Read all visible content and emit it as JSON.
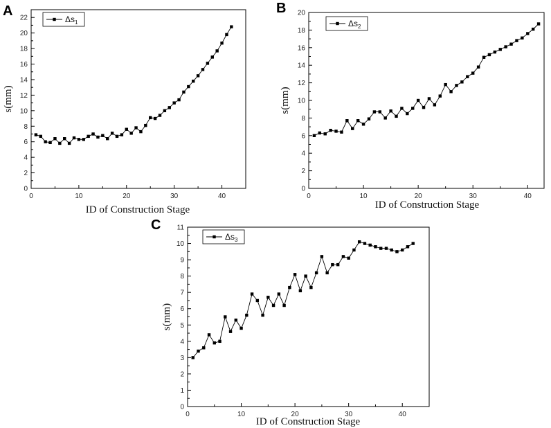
{
  "chart_data": [
    {
      "type": "line",
      "panel": "A",
      "legend": "Δs",
      "legend_sub": "1",
      "legend_position": "top-left",
      "xlabel": "ID of Construction Stage",
      "ylabel": "s(mm)",
      "xlim": [
        0,
        45
      ],
      "ylim": [
        0,
        23
      ],
      "xticks": [
        0,
        10,
        20,
        30,
        40
      ],
      "yticks": [
        0,
        2,
        4,
        6,
        8,
        10,
        12,
        14,
        16,
        18,
        20,
        22
      ],
      "x": [
        1,
        2,
        3,
        4,
        5,
        6,
        7,
        8,
        9,
        10,
        11,
        12,
        13,
        14,
        15,
        16,
        17,
        18,
        19,
        20,
        21,
        22,
        23,
        24,
        25,
        26,
        27,
        28,
        29,
        30,
        31,
        32,
        33,
        34,
        35,
        36,
        37,
        38,
        39,
        40,
        41,
        42
      ],
      "values": [
        6.9,
        6.7,
        6.0,
        5.9,
        6.4,
        5.8,
        6.4,
        5.8,
        6.5,
        6.3,
        6.3,
        6.7,
        7.0,
        6.6,
        6.8,
        6.4,
        7.1,
        6.7,
        6.9,
        7.6,
        7.1,
        7.8,
        7.3,
        8.1,
        9.1,
        9.0,
        9.4,
        10.0,
        10.4,
        11.0,
        11.4,
        12.4,
        13.1,
        13.8,
        14.5,
        15.3,
        16.1,
        16.9,
        17.7,
        18.7,
        19.8,
        20.8
      ]
    },
    {
      "type": "line",
      "panel": "B",
      "legend": "Δs",
      "legend_sub": "2",
      "legend_position": "top-left",
      "xlabel": "ID of Construction Stage",
      "ylabel": "s(mm)",
      "xlim": [
        0,
        43
      ],
      "ylim": [
        0,
        20
      ],
      "xticks": [
        0,
        10,
        20,
        30,
        40
      ],
      "yticks": [
        0,
        2,
        4,
        6,
        8,
        10,
        12,
        14,
        16,
        18,
        20
      ],
      "x": [
        1,
        2,
        3,
        4,
        5,
        6,
        7,
        8,
        9,
        10,
        11,
        12,
        13,
        14,
        15,
        16,
        17,
        18,
        19,
        20,
        21,
        22,
        23,
        24,
        25,
        26,
        27,
        28,
        29,
        30,
        31,
        32,
        33,
        34,
        35,
        36,
        37,
        38,
        39,
        40,
        41,
        42
      ],
      "values": [
        6.0,
        6.3,
        6.2,
        6.6,
        6.5,
        6.4,
        7.7,
        6.8,
        7.7,
        7.3,
        7.9,
        8.7,
        8.7,
        8.0,
        8.8,
        8.2,
        9.1,
        8.5,
        9.1,
        10.0,
        9.2,
        10.2,
        9.5,
        10.5,
        11.8,
        11.0,
        11.7,
        12.1,
        12.7,
        13.1,
        13.8,
        14.9,
        15.2,
        15.5,
        15.8,
        16.1,
        16.4,
        16.8,
        17.1,
        17.6,
        18.1,
        18.7
      ]
    },
    {
      "type": "line",
      "panel": "C",
      "legend": "Δs",
      "legend_sub": "3",
      "legend_position": "top-left",
      "xlabel": "ID of Construction Stage",
      "ylabel": "s(mm)",
      "xlim": [
        0,
        45
      ],
      "ylim": [
        0,
        11
      ],
      "xticks": [
        0,
        10,
        20,
        30,
        40
      ],
      "yticks": [
        0,
        1,
        2,
        3,
        4,
        5,
        6,
        7,
        8,
        9,
        10,
        11
      ],
      "x": [
        1,
        2,
        3,
        4,
        5,
        6,
        7,
        8,
        9,
        10,
        11,
        12,
        13,
        14,
        15,
        16,
        17,
        18,
        19,
        20,
        21,
        22,
        23,
        24,
        25,
        26,
        27,
        28,
        29,
        30,
        31,
        32,
        33,
        34,
        35,
        36,
        37,
        38,
        39,
        40,
        41,
        42
      ],
      "values": [
        3.0,
        3.4,
        3.6,
        4.4,
        3.9,
        4.0,
        5.5,
        4.6,
        5.3,
        4.8,
        5.6,
        6.9,
        6.5,
        5.6,
        6.7,
        6.2,
        6.9,
        6.2,
        7.3,
        8.1,
        7.1,
        8.0,
        7.3,
        8.2,
        9.2,
        8.2,
        8.7,
        8.7,
        9.2,
        9.1,
        9.6,
        10.1,
        10.0,
        9.9,
        9.8,
        9.7,
        9.7,
        9.6,
        9.5,
        9.6,
        9.8,
        10.0
      ]
    }
  ]
}
